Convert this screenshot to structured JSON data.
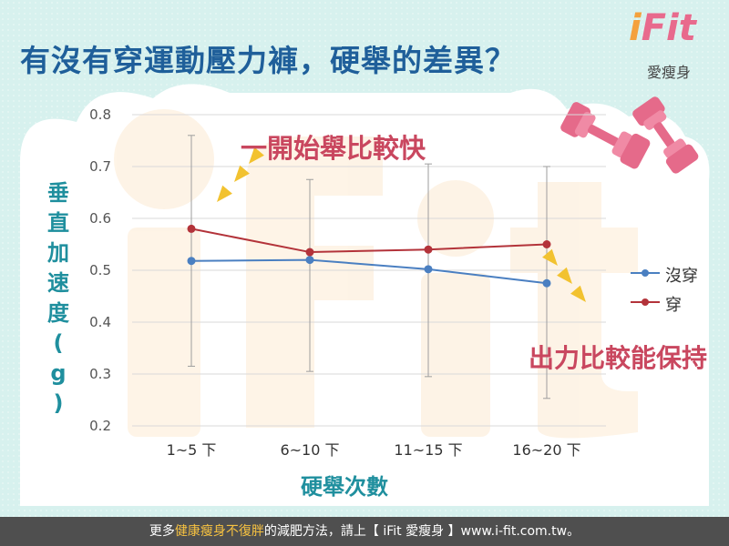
{
  "header": {
    "title": "有沒有穿運動壓力褲，硬舉的差異？"
  },
  "logo": {
    "brand_i": "i",
    "brand_rest": "Fit",
    "subtitle": "愛瘦身"
  },
  "annotations": {
    "top": "一開始舉比較快",
    "bottom": "出力比較能保持"
  },
  "footer": {
    "prefix": "更多",
    "highlight": "健康瘦身不復胖",
    "suffix": "的減肥方法，請上【 iFit 愛瘦身 】www.i-fit.com.tw。"
  },
  "colors": {
    "no_garment": "#4a7fc1",
    "garment": "#b3333a",
    "error_bar": "#9e9e9e",
    "title": "#1f5f9a",
    "axis_title": "#1f8f9e",
    "annotation": "#c9475f",
    "arrow": "#f2c230"
  },
  "chart_data": {
    "type": "line",
    "categories": [
      "1~5 下",
      "6~10 下",
      "11~15 下",
      "16~20 下"
    ],
    "series": [
      {
        "name": "沒穿",
        "values": [
          0.518,
          0.52,
          0.502,
          0.475
        ],
        "color": "#4a7fc1"
      },
      {
        "name": "穿",
        "values": [
          0.58,
          0.535,
          0.54,
          0.55
        ],
        "color": "#b3333a",
        "error_low": [
          0.315,
          0.305,
          0.295,
          0.253
        ],
        "error_high": [
          0.76,
          0.675,
          0.705,
          0.7
        ]
      }
    ],
    "y_ticks": [
      "0.2",
      "0.3",
      "0.4",
      "0.5",
      "0.6",
      "0.7",
      "0.8"
    ],
    "ylim": [
      0.2,
      0.8
    ],
    "ylabel": "垂直加速度(g)",
    "xlabel": "硬舉次數",
    "grid": true,
    "legend_position": "right"
  }
}
